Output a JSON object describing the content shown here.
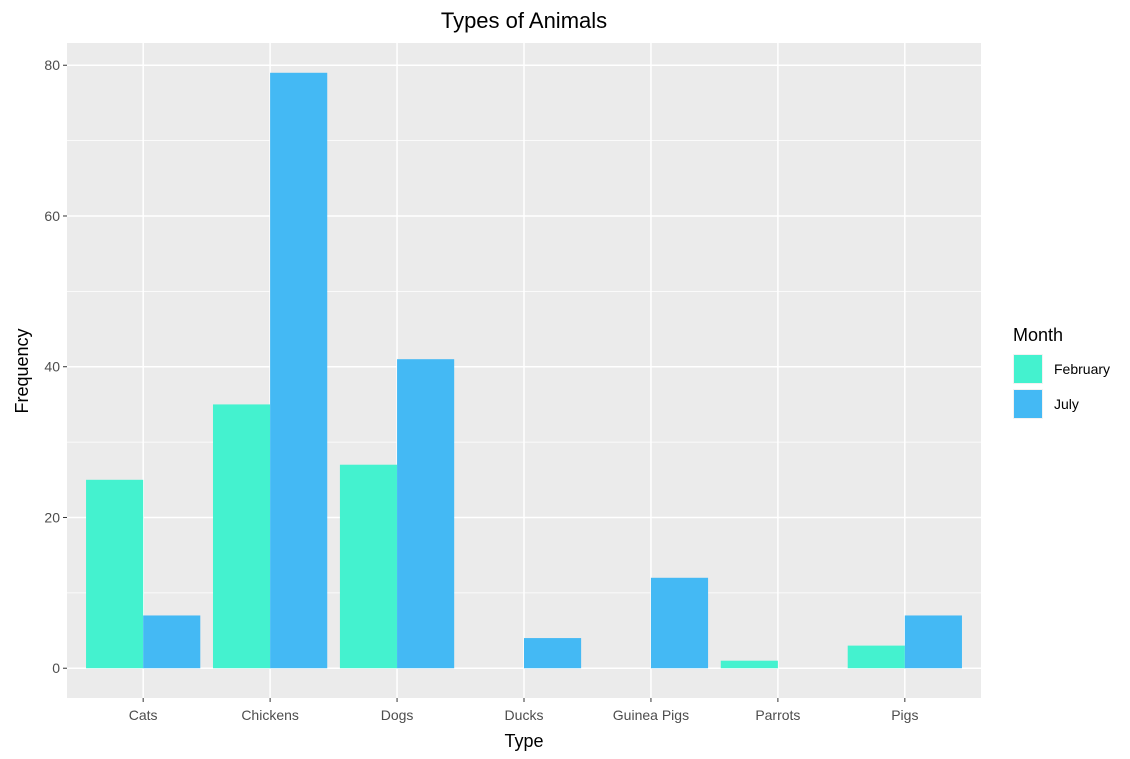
{
  "chart_data": {
    "type": "bar",
    "title": "Types of Animals",
    "xlabel": "Type",
    "ylabel": "Frequency",
    "categories": [
      "Cats",
      "Chickens",
      "Dogs",
      "Ducks",
      "Guinea Pigs",
      "Parrots",
      "Pigs"
    ],
    "series": [
      {
        "name": "February",
        "color": "#44f2cf",
        "values": [
          25,
          35,
          27,
          0,
          0,
          1,
          3
        ]
      },
      {
        "name": "July",
        "color": "#44b9f4",
        "values": [
          7,
          79,
          41,
          4,
          12,
          0,
          7
        ]
      }
    ],
    "ylim": [
      -3.95,
      82.95
    ],
    "yticks": [
      0,
      20,
      40,
      60,
      80
    ],
    "grid": true,
    "panel_color": "#ebebeb",
    "grid_color": "#ffffff",
    "legend": {
      "title": "Month",
      "placement": "right"
    }
  }
}
